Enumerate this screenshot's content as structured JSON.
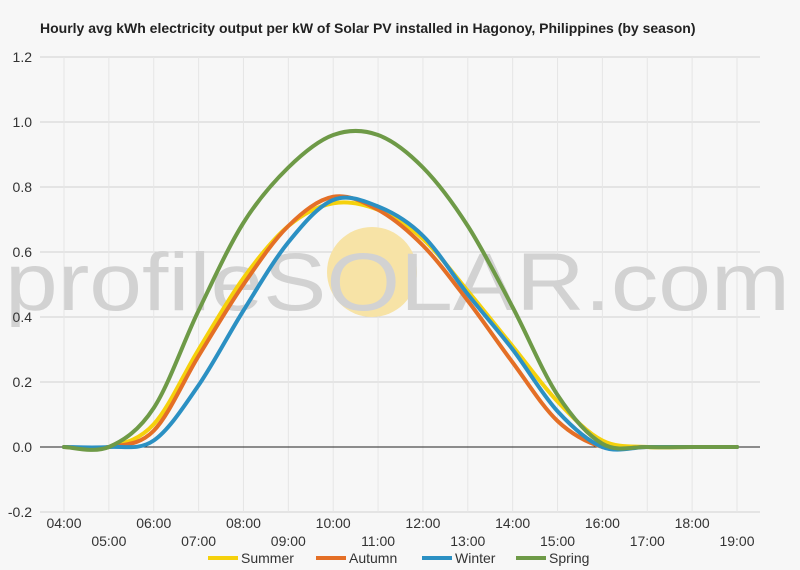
{
  "watermark": {
    "left": "profile",
    "mid": "SOLAR",
    "right": ".com",
    "sun_color": "#f7e3a6"
  },
  "chart_data": {
    "type": "line",
    "title": "Hourly avg kWh electricity output per kW of Solar PV installed in Hagonoy, Philippines (by season)",
    "xlabel": "",
    "ylabel": "",
    "x": [
      "04:00",
      "05:00",
      "06:00",
      "07:00",
      "08:00",
      "09:00",
      "10:00",
      "11:00",
      "12:00",
      "13:00",
      "14:00",
      "15:00",
      "16:00",
      "17:00",
      "18:00",
      "19:00"
    ],
    "ylim": [
      -0.2,
      1.2
    ],
    "yticks": [
      "-0.2",
      "0.0",
      "0.2",
      "0.4",
      "0.6",
      "0.8",
      "1.0",
      "1.2"
    ],
    "grid": true,
    "legend": "bottom",
    "series": [
      {
        "name": "Summer",
        "color": "#f5d10c",
        "values": [
          0.0,
          0.0,
          0.07,
          0.3,
          0.52,
          0.68,
          0.75,
          0.73,
          0.64,
          0.48,
          0.31,
          0.14,
          0.02,
          0.0,
          0.0,
          0.0
        ]
      },
      {
        "name": "Autumn",
        "color": "#e46f26",
        "values": [
          0.0,
          0.0,
          0.05,
          0.28,
          0.5,
          0.68,
          0.77,
          0.73,
          0.62,
          0.45,
          0.26,
          0.08,
          0.0,
          0.0,
          0.0,
          0.0
        ]
      },
      {
        "name": "Winter",
        "color": "#2b90c3",
        "values": [
          0.0,
          0.0,
          0.02,
          0.19,
          0.42,
          0.63,
          0.76,
          0.74,
          0.65,
          0.47,
          0.3,
          0.11,
          0.0,
          0.0,
          0.0,
          0.0
        ]
      },
      {
        "name": "Spring",
        "color": "#6e9a47",
        "values": [
          0.0,
          0.0,
          0.12,
          0.42,
          0.69,
          0.86,
          0.96,
          0.96,
          0.86,
          0.68,
          0.43,
          0.16,
          0.01,
          0.0,
          0.0,
          0.0
        ]
      }
    ]
  }
}
